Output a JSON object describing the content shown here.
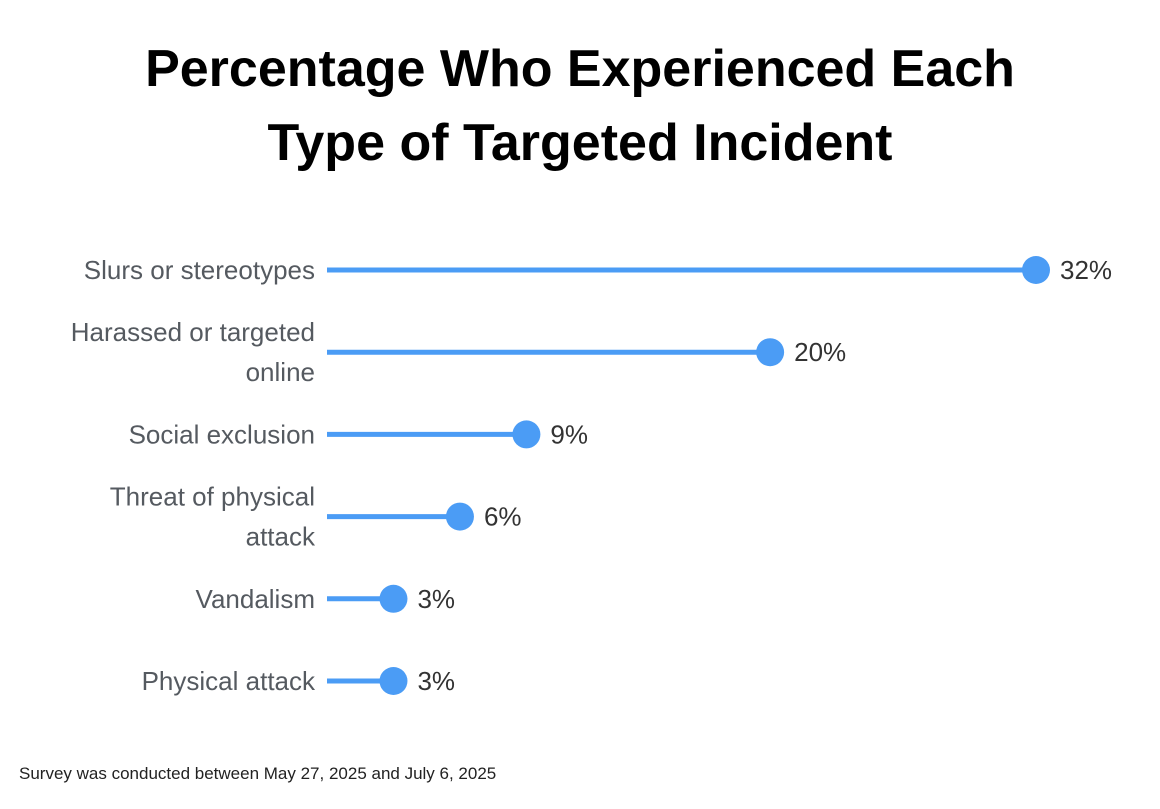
{
  "title_lines": [
    "Percentage Who Experienced Each",
    "Type of Targeted Incident"
  ],
  "footnote": "Survey was conducted between May 27, 2025 and July 6, 2025",
  "colors": {
    "accent": "#4b9cf5",
    "label": "#555a60",
    "value": "#333333",
    "title": "#000000"
  },
  "chart_data": {
    "type": "lollipop",
    "title": "Percentage Who Experienced Each Type of Targeted Incident",
    "categories": [
      [
        "Slurs or stereotypes"
      ],
      [
        "Harassed or targeted",
        "online"
      ],
      [
        "Social exclusion"
      ],
      [
        "Threat of physical",
        "attack"
      ],
      [
        "Vandalism"
      ],
      [
        "Physical attack"
      ]
    ],
    "values": [
      32,
      20,
      9,
      6,
      3,
      3
    ],
    "value_labels": [
      "32%",
      "20%",
      "9%",
      "6%",
      "3%",
      "3%"
    ],
    "unit": "%",
    "xlim": [
      0,
      32
    ],
    "grid": false,
    "legend": "none"
  }
}
